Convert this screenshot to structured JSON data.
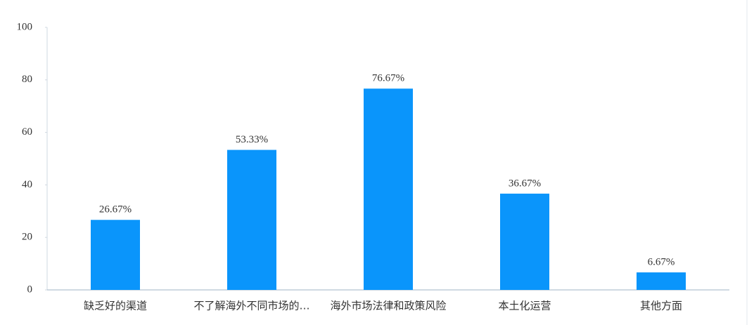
{
  "chart_data": {
    "type": "bar",
    "categories": [
      "缺乏好的渠道",
      "不了解海外不同市场的…",
      "海外市场法律和政策风险",
      "本土化运营",
      "其他方面"
    ],
    "values": [
      26.67,
      53.33,
      76.67,
      36.67,
      6.67
    ],
    "value_labels": [
      "26.67%",
      "53.33%",
      "76.67%",
      "36.67%",
      "6.67%"
    ],
    "color": "#0a95fb",
    "ylim": [
      0,
      100
    ],
    "yticks": [
      0,
      20,
      40,
      60,
      80,
      100
    ],
    "grid": false
  }
}
